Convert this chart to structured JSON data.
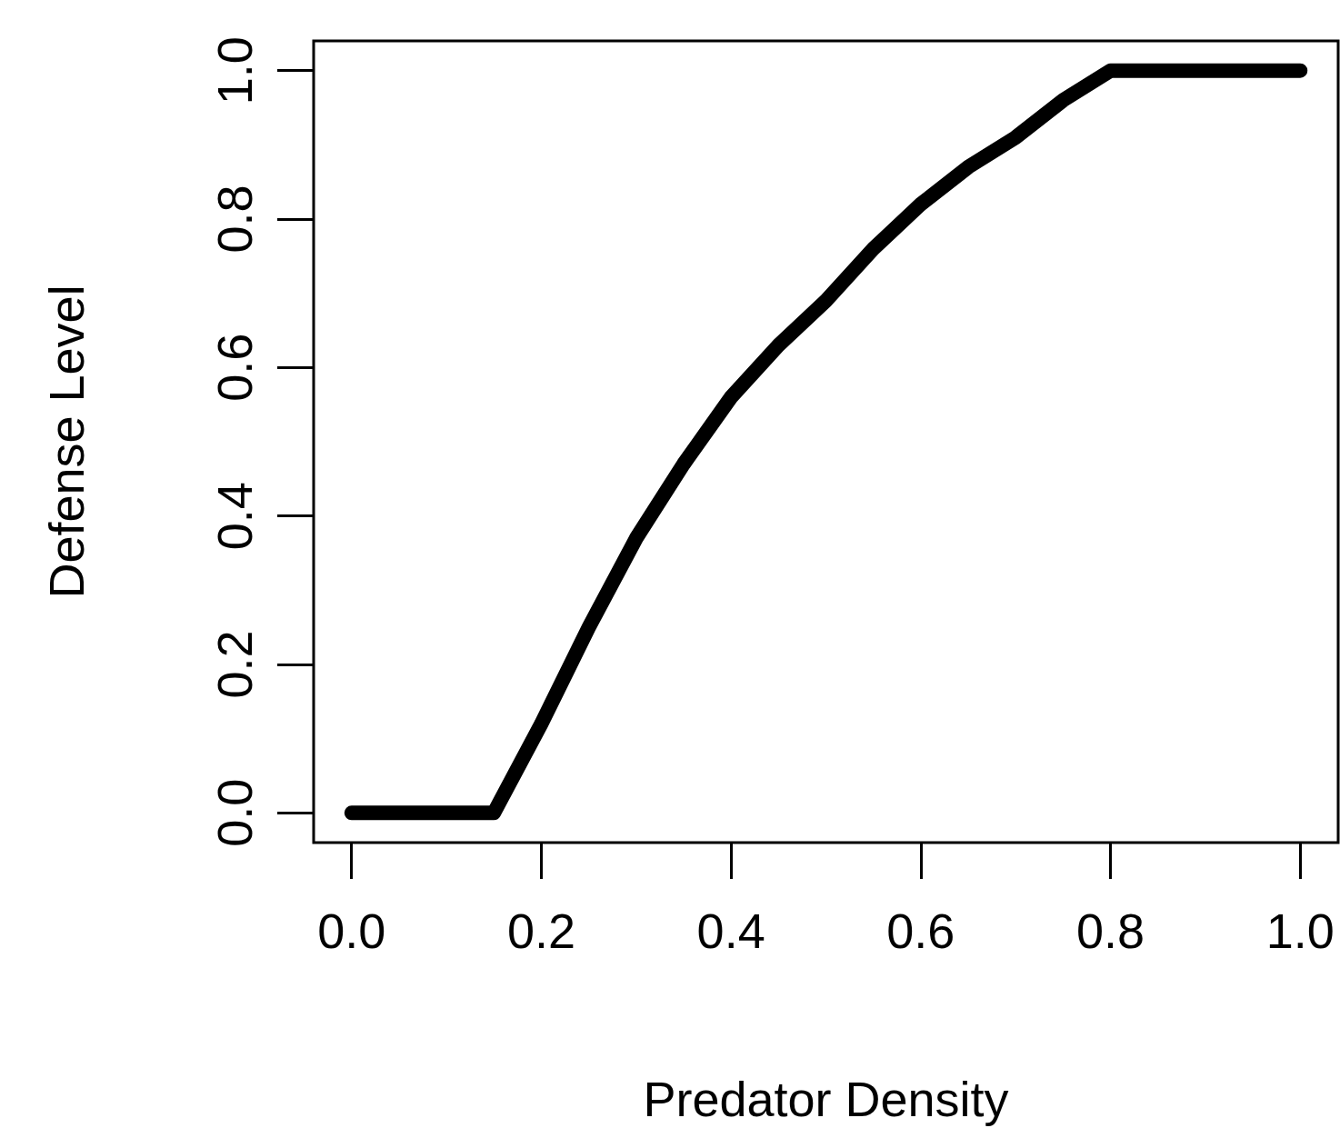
{
  "chart_data": {
    "type": "line",
    "xlabel": "Predator Density",
    "ylabel": "Defense Level",
    "series": [
      {
        "color": "#000000",
        "x": [
          0,
          0.15,
          0.2,
          0.25,
          0.3,
          0.35,
          0.4,
          0.45,
          0.5,
          0.55,
          0.6,
          0.65,
          0.7,
          0.75,
          0.8,
          1.0
        ],
        "values": [
          0,
          0,
          0.12,
          0.25,
          0.37,
          0.47,
          0.56,
          0.63,
          0.69,
          0.76,
          0.82,
          0.87,
          0.91,
          0.96,
          1.0,
          1.0
        ]
      }
    ],
    "xlim": [
      -0.04,
      1.04
    ],
    "ylim": [
      -0.04,
      1.04
    ],
    "xticks": [
      {
        "value": 0,
        "label": "0.0"
      },
      0.2,
      0.4,
      0.6,
      0.8,
      {
        "value": 1,
        "label": "1.0"
      }
    ],
    "yticks": [
      {
        "value": 0,
        "label": "0.0"
      },
      0.2,
      0.4,
      0.6,
      0.8,
      {
        "value": 1,
        "label": "1.0"
      }
    ],
    "grid": false,
    "line_style": "solid"
  }
}
